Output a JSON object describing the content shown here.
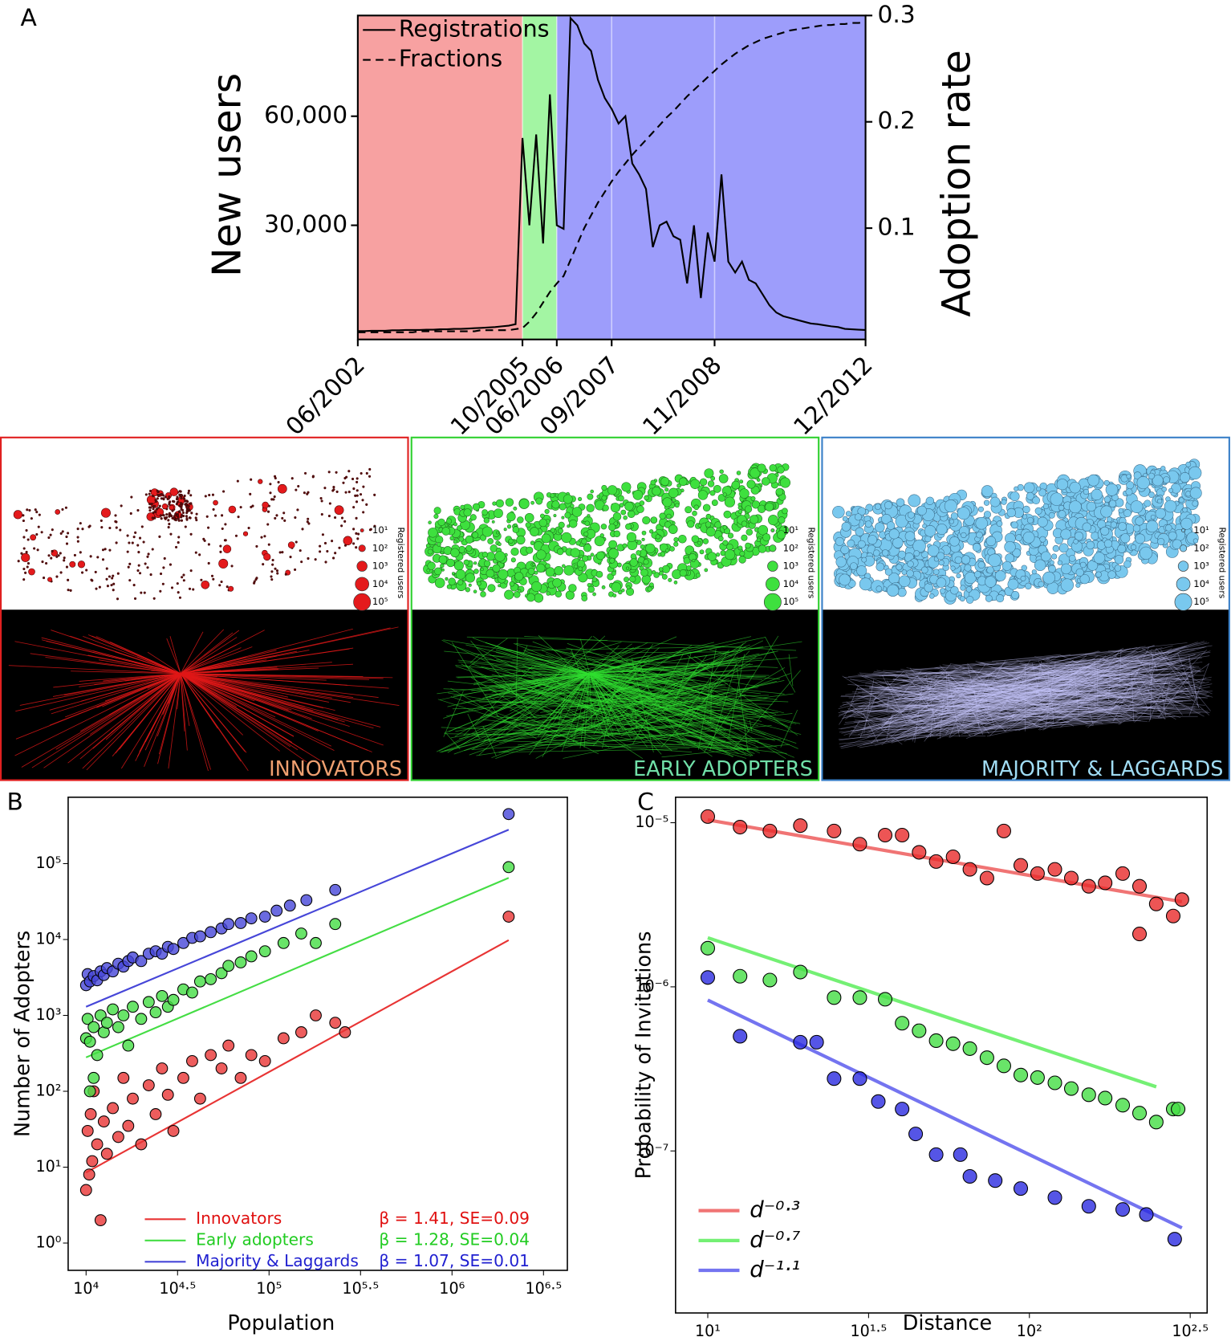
{
  "chart_data": [
    {
      "type": "line",
      "panel_label": "A",
      "y_label": "New users",
      "y2_label": "Adoption rate",
      "legend": "top-left",
      "grid_x": true,
      "categories": [
        "06/2002",
        null,
        null,
        null,
        null,
        null,
        null,
        null,
        null,
        null,
        null,
        null,
        null,
        null,
        null,
        null,
        null,
        null,
        null,
        null,
        null,
        null,
        null,
        null,
        "10/2005",
        null,
        null,
        null,
        null,
        "06/2006",
        null,
        null,
        null,
        null,
        null,
        null,
        null,
        "09/2007",
        null,
        null,
        null,
        null,
        null,
        null,
        null,
        null,
        null,
        null,
        null,
        null,
        null,
        null,
        "11/2008",
        null,
        null,
        null,
        null,
        null,
        null,
        null,
        null,
        null,
        null,
        null,
        null,
        null,
        null,
        null,
        null,
        null,
        null,
        null,
        null,
        null,
        "12/2012"
      ],
      "bands": [
        {
          "from": "06/2002",
          "to": "10/2005",
          "color": "#f7a1a1"
        },
        {
          "from": "10/2005",
          "to": "06/2006",
          "color": "#a3f5a3"
        },
        {
          "from": "06/2006",
          "to": "12/2012",
          "color": "#9d9dfb"
        }
      ],
      "series": [
        {
          "name": "Registrations",
          "color": "#000000",
          "dash": false,
          "axis": "y",
          "values": [
            900,
            900,
            1000,
            1000,
            1000,
            1100,
            1100,
            1200,
            1200,
            1200,
            1300,
            1300,
            1400,
            1400,
            1500,
            1500,
            1600,
            1700,
            1800,
            1900,
            2000,
            2200,
            2400,
            2800,
            54000,
            30000,
            55000,
            25000,
            66000,
            30000,
            29000,
            87000,
            85000,
            80000,
            78000,
            70000,
            65000,
            62000,
            58000,
            60000,
            47000,
            44000,
            40000,
            24000,
            30000,
            31000,
            27000,
            26000,
            14000,
            30000,
            10000,
            28000,
            20000,
            44000,
            20000,
            17000,
            20000,
            15000,
            14000,
            11000,
            8000,
            6000,
            5000,
            4500,
            4000,
            3500,
            3000,
            2800,
            2500,
            2200,
            2000,
            1500,
            1400,
            1300,
            1200
          ]
        },
        {
          "name": "Fractions",
          "color": "#000000",
          "dash": true,
          "axis": "y2",
          "values": [
            0.002,
            0.002,
            0.002,
            0.002,
            0.002,
            0.002,
            0.002,
            0.002,
            0.002,
            0.003,
            0.003,
            0.003,
            0.003,
            0.003,
            0.003,
            0.003,
            0.003,
            0.003,
            0.004,
            0.004,
            0.004,
            0.004,
            0.004,
            0.005,
            0.006,
            0.012,
            0.02,
            0.03,
            0.04,
            0.048,
            0.055,
            0.07,
            0.085,
            0.1,
            0.112,
            0.124,
            0.134,
            0.144,
            0.153,
            0.161,
            0.169,
            0.176,
            0.183,
            0.19,
            0.197,
            0.204,
            0.21,
            0.217,
            0.224,
            0.23,
            0.236,
            0.242,
            0.248,
            0.254,
            0.259,
            0.264,
            0.268,
            0.272,
            0.275,
            0.278,
            0.28,
            0.282,
            0.284,
            0.286,
            0.287,
            0.288,
            0.289,
            0.29,
            0.291,
            0.291,
            0.292,
            0.292,
            0.293,
            0.293,
            0.294
          ]
        }
      ],
      "ylim": [
        -1400,
        87700
      ],
      "yticks": [
        {
          "value": 30000,
          "label": "30,000"
        },
        {
          "value": 60000,
          "label": "60,000"
        }
      ],
      "y2lim": [
        -0.0047,
        0.3
      ],
      "y2ticks": [
        0.1,
        0.2,
        0.3
      ]
    },
    {
      "type": "scatter",
      "panel_label": "B",
      "x_label": "Population",
      "y_label": "Number of Adopters",
      "log_x": true,
      "log_y": true,
      "legend": "bottom-left",
      "xlim": [
        7980,
        4270000
      ],
      "ylim": [
        0.437,
        750000
      ],
      "xticks": [
        {
          "value": 10000,
          "label": "10⁴"
        },
        {
          "value": 31623,
          "label": "10⁴·⁵"
        },
        {
          "value": 100000,
          "label": "10⁵"
        },
        {
          "value": 316228,
          "label": "10⁵·⁵"
        },
        {
          "value": 1000000,
          "label": "10⁶"
        },
        {
          "value": 3162278,
          "label": "10⁶·⁵"
        }
      ],
      "yticks": [
        {
          "value": 1,
          "label": "10⁰"
        },
        {
          "value": 10,
          "label": "10¹"
        },
        {
          "value": 100,
          "label": "10²"
        },
        {
          "value": 1000,
          "label": "10³"
        },
        {
          "value": 10000,
          "label": "10⁴"
        },
        {
          "value": 100000,
          "label": "10⁵"
        }
      ],
      "series": [
        {
          "name": "Innovators",
          "color": "#e83434",
          "text_color": "#e01010",
          "annotation": "β = 1.41, SE=0.09",
          "x": [
            10000,
            10200,
            10400,
            10600,
            10800,
            11000,
            11500,
            12000,
            12500,
            13000,
            14000,
            15000,
            16000,
            17000,
            18000,
            20000,
            22000,
            24000,
            26000,
            28000,
            30000,
            34000,
            38000,
            42000,
            48000,
            55000,
            60000,
            70000,
            80000,
            95000,
            120000,
            150000,
            180000,
            230000,
            260000,
            2040000
          ],
          "values": [
            5,
            30,
            8,
            50,
            12,
            100,
            20,
            2,
            40,
            15,
            60,
            25,
            150,
            35,
            80,
            20,
            120,
            50,
            200,
            90,
            30,
            150,
            250,
            80,
            300,
            200,
            400,
            150,
            300,
            250,
            500,
            600,
            1000,
            800,
            600,
            20000
          ],
          "fit_x": [
            10000,
            2040000
          ],
          "fit_y": [
            8.5,
            9800
          ]
        },
        {
          "name": "Early adopters",
          "color": "#44dd44",
          "text_color": "#22cc22",
          "annotation": "β = 1.28, SE=0.04",
          "x": [
            10000,
            10200,
            10500,
            10500,
            11000,
            11000,
            11500,
            12000,
            12500,
            13000,
            14000,
            15000,
            16000,
            17000,
            18000,
            20000,
            22000,
            24000,
            26000,
            28000,
            30000,
            34000,
            38000,
            42000,
            48000,
            55000,
            60000,
            70000,
            80000,
            95000,
            120000,
            150000,
            180000,
            230000,
            2040000
          ],
          "values": [
            500,
            900,
            450,
            100,
            700,
            150,
            300,
            1000,
            600,
            800,
            1200,
            700,
            1000,
            400,
            1300,
            900,
            1500,
            1100,
            1800,
            1300,
            1600,
            2200,
            2000,
            2800,
            3000,
            3600,
            4500,
            5000,
            6000,
            7000,
            9000,
            12000,
            9000,
            16000,
            90000
          ],
          "fit_x": [
            10000,
            2040000
          ],
          "fit_y": [
            280,
            65000
          ]
        },
        {
          "name": "Majority & Laggards",
          "color": "#4646d8",
          "text_color": "#2020d0",
          "annotation": "β = 1.07, SE=0.01",
          "x": [
            10000,
            10200,
            10500,
            11000,
            11500,
            12000,
            12500,
            13000,
            14000,
            15000,
            16000,
            17000,
            18000,
            20000,
            22000,
            24000,
            26000,
            28000,
            30000,
            34000,
            38000,
            42000,
            48000,
            55000,
            60000,
            70000,
            80000,
            95000,
            110000,
            130000,
            160000,
            230000,
            2040000
          ],
          "values": [
            2500,
            3500,
            2800,
            3300,
            2900,
            3800,
            3400,
            4200,
            3800,
            4800,
            4400,
            5200,
            5800,
            5200,
            6500,
            7000,
            6500,
            8000,
            7500,
            9000,
            10500,
            11000,
            12500,
            14000,
            16000,
            16500,
            19000,
            20000,
            24000,
            28000,
            33000,
            45000,
            450000
          ],
          "fit_x": [
            10000,
            2040000
          ],
          "fit_y": [
            1300,
            280000
          ]
        }
      ]
    },
    {
      "type": "scatter",
      "panel_label": "C",
      "x_label": "Distance",
      "y_label": "Probability of Invitations",
      "log_x": true,
      "log_y": true,
      "legend": "bottom-left",
      "xlim": [
        7.94,
        357
      ],
      "ylim": [
        1.03e-08,
        1.43e-05
      ],
      "xticks": [
        {
          "value": 10,
          "label": "10¹"
        },
        {
          "value": 31.623,
          "label": "10¹·⁵"
        },
        {
          "value": 100,
          "label": "10²"
        },
        {
          "value": 316.23,
          "label": "10²·⁵"
        }
      ],
      "yticks": [
        {
          "value": 1e-05,
          "label": "10⁻⁵"
        },
        {
          "value": 1e-06,
          "label": "10⁻⁶"
        },
        {
          "value": 1e-07,
          "label": "10⁻⁷"
        }
      ],
      "series": [
        {
          "color": "#e82a2a",
          "x": [
            10,
            12.6,
            15.6,
            19.4,
            24.7,
            29.7,
            35.6,
            40.2,
            45.4,
            51.3,
            57.9,
            65.3,
            73.8,
            83.3,
            94,
            106,
            120,
            135,
            153,
            172,
            195,
            220,
            220,
            248,
            280,
            298
          ],
          "values": [
            1.09e-05,
            9.4e-06,
            8.9e-06,
            9.6e-06,
            8.9e-06,
            7.4e-06,
            8.4e-06,
            8.4e-06,
            6.6e-06,
            5.8e-06,
            6.2e-06,
            5.2e-06,
            4.6e-06,
            8.9e-06,
            5.5e-06,
            4.9e-06,
            5.2e-06,
            4.6e-06,
            4.1e-06,
            4.3e-06,
            4.9e-06,
            4.1e-06,
            2.1e-06,
            3.2e-06,
            2.7e-06,
            3.4e-06
          ]
        },
        {
          "color": "#44dd44",
          "x": [
            10,
            12.6,
            15.6,
            19.4,
            24.7,
            29.7,
            35.6,
            40.2,
            45.4,
            51.3,
            57.9,
            65.3,
            73.8,
            83.3,
            94,
            106,
            120,
            135,
            153,
            172,
            195,
            220,
            248,
            280,
            290
          ],
          "values": [
            1.72e-06,
            1.16e-06,
            1.1e-06,
            1.23e-06,
            8.6e-07,
            8.6e-07,
            8.4e-07,
            6e-07,
            5.4e-07,
            4.7e-07,
            4.5e-07,
            4.2e-07,
            3.7e-07,
            3.3e-07,
            2.9e-07,
            2.8e-07,
            2.6e-07,
            2.4e-07,
            2.2e-07,
            2.1e-07,
            1.9e-07,
            1.7e-07,
            1.5e-07,
            1.8e-07,
            1.8e-07
          ]
        },
        {
          "color": "#2a2ae0",
          "x": [
            10,
            12.6,
            19.4,
            21.8,
            24.7,
            29.7,
            33.9,
            40.2,
            44.3,
            51.3,
            61,
            65.3,
            78.3,
            94,
            120,
            153,
            195,
            231,
            283
          ],
          "values": [
            1.14e-06,
            5e-07,
            4.6e-07,
            4.6e-07,
            2.76e-07,
            2.76e-07,
            2e-07,
            1.8e-07,
            1.27e-07,
            9.5e-08,
            9.5e-08,
            7e-08,
            6.6e-08,
            5.9e-08,
            5.2e-08,
            4.6e-08,
            4.4e-08,
            4.1e-08,
            2.9e-08
          ]
        }
      ],
      "fits": [
        {
          "label": "d⁻⁰·³",
          "color": "#f07474",
          "x": [
            10,
            298
          ],
          "y": [
            1.04e-05,
            3.3e-06
          ]
        },
        {
          "label": "d⁻⁰·⁷",
          "color": "#74f074",
          "x": [
            10,
            248
          ],
          "y": [
            1.99e-06,
            2.46e-07
          ]
        },
        {
          "label": "d⁻¹·¹",
          "color": "#7474f0",
          "x": [
            10,
            298
          ],
          "y": [
            8.3e-07,
            3.4e-08
          ]
        }
      ]
    }
  ],
  "maps": {
    "size_legend": {
      "title": "Registered users",
      "labels": [
        "10¹",
        "10²",
        "10³",
        "10⁴",
        "10⁵"
      ]
    },
    "panels": [
      {
        "label": "INNOVATORS",
        "mode": "star",
        "color": "#e41a1c",
        "border": "#e02020",
        "label_color": "#f0a070",
        "line_color": "#e01818"
      },
      {
        "label": "EARLY ADOPTERS",
        "mode": "mesh",
        "color": "#3ee03e",
        "border": "#30d030",
        "label_color": "#70e0a8",
        "line_color": "#30e030"
      },
      {
        "label": "MAJORITY & LAGGARDS",
        "mode": "dense",
        "color": "#79c8ee",
        "border": "#3a80c8",
        "label_color": "#a0dcf4",
        "line_color": "#c8c8ff"
      }
    ]
  }
}
